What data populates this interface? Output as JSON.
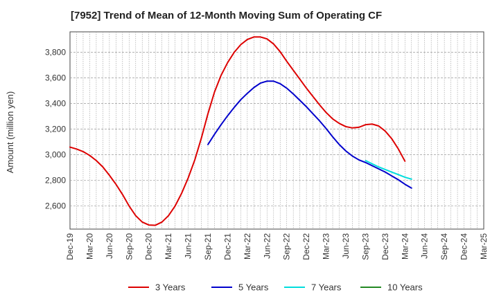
{
  "chart_data": {
    "type": "line",
    "title": "[7952]  Trend of Mean of 12-Month Moving Sum of Operating CF",
    "xlabel": "",
    "ylabel": "Amount (million yen)",
    "ylim": [
      2420,
      3960
    ],
    "yticks": [
      2600,
      2800,
      3000,
      3200,
      3400,
      3600,
      3800
    ],
    "ytick_labels": [
      "2,600",
      "2,800",
      "3,000",
      "3,200",
      "3,400",
      "3,600",
      "3,800"
    ],
    "x_start": "Dec-19",
    "x_end": "Mar-25",
    "x_tick_labels": [
      "Dec-19",
      "Mar-20",
      "Jun-20",
      "Sep-20",
      "Dec-20",
      "Mar-21",
      "Jun-21",
      "Sep-21",
      "Dec-21",
      "Mar-22",
      "Jun-22",
      "Sep-22",
      "Dec-22",
      "Mar-23",
      "Jun-23",
      "Sep-23",
      "Dec-23",
      "Mar-24",
      "Jun-24",
      "Sep-24",
      "Dec-24",
      "Mar-25"
    ],
    "grid": true,
    "legend_position": "bottom",
    "series": [
      {
        "name": "3 Years",
        "color": "#dd0000",
        "start_month": 0,
        "values": [
          3060,
          3045,
          3025,
          2995,
          2955,
          2905,
          2840,
          2770,
          2690,
          2600,
          2525,
          2475,
          2452,
          2450,
          2475,
          2525,
          2600,
          2700,
          2820,
          2960,
          3130,
          3320,
          3490,
          3620,
          3720,
          3800,
          3860,
          3900,
          3920,
          3920,
          3905,
          3865,
          3805,
          3730,
          3660,
          3590,
          3520,
          3455,
          3390,
          3330,
          3280,
          3245,
          3220,
          3210,
          3215,
          3235,
          3240,
          3225,
          3185,
          3125,
          3045,
          2950
        ]
      },
      {
        "name": "5 Years",
        "color": "#0000cc",
        "start_month": 21,
        "values": [
          3080,
          3160,
          3235,
          3305,
          3370,
          3430,
          3480,
          3525,
          3560,
          3575,
          3575,
          3555,
          3520,
          3475,
          3425,
          3375,
          3320,
          3265,
          3205,
          3140,
          3080,
          3030,
          2990,
          2960,
          2940,
          2915,
          2890,
          2865,
          2835,
          2805,
          2770,
          2740
        ]
      },
      {
        "name": "7 Years",
        "color": "#00dddd",
        "start_month": 45,
        "values": [
          2955,
          2930,
          2905,
          2885,
          2865,
          2845,
          2825,
          2810
        ]
      },
      {
        "name": "10 Years",
        "color": "#228822",
        "start_month": 0,
        "values": []
      }
    ]
  }
}
